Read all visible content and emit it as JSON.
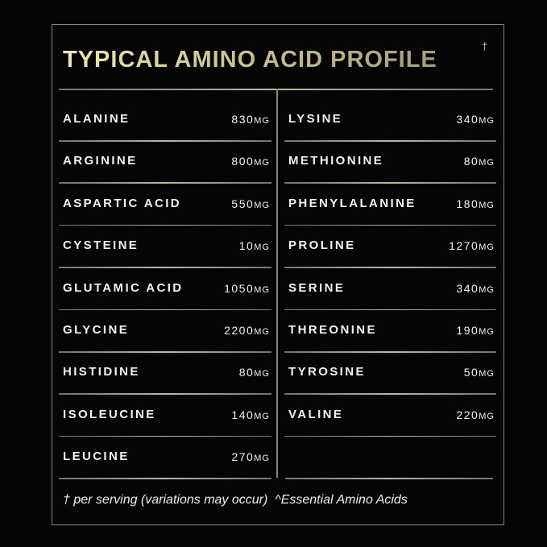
{
  "title": "TYPICAL AMINO ACID PROFILE",
  "title_mark": "†",
  "unit": "MG",
  "left_column": [
    {
      "name": "ALANINE",
      "value": "830"
    },
    {
      "name": "ARGININE",
      "value": "800"
    },
    {
      "name": "ASPARTIC ACID",
      "value": "550"
    },
    {
      "name": "CYSTEINE",
      "value": "10"
    },
    {
      "name": "GLUTAMIC ACID",
      "value": "1050"
    },
    {
      "name": "GLYCINE",
      "value": "2200"
    },
    {
      "name": "HISTIDINE",
      "value": "80"
    },
    {
      "name": "ISOLEUCINE",
      "value": "140"
    },
    {
      "name": "LEUCINE",
      "value": "270"
    }
  ],
  "right_column": [
    {
      "name": "LYSINE",
      "value": "340"
    },
    {
      "name": "METHIONINE",
      "value": "80"
    },
    {
      "name": "PHENYLALANINE",
      "value": "180"
    },
    {
      "name": "PROLINE",
      "value": "1270"
    },
    {
      "name": "SERINE",
      "value": "340"
    },
    {
      "name": "THREONINE",
      "value": "190"
    },
    {
      "name": "TYROSINE",
      "value": "50"
    },
    {
      "name": "VALINE",
      "value": "220"
    }
  ],
  "footnote_serving": "† per serving (variations may occur)",
  "footnote_essential": "^Essential Amino Acids",
  "colors": {
    "background": "#050505",
    "gold": "#d8cd92",
    "text": "#f2f2f2"
  }
}
